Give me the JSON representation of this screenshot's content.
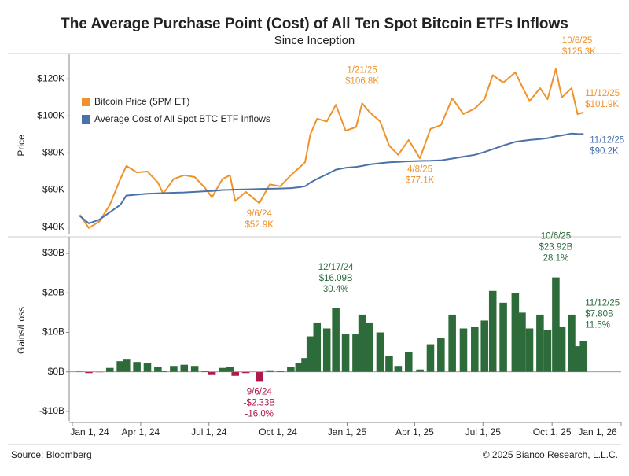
{
  "title": "The Average Purchase Point (Cost) of All Ten Spot Bitcoin ETFs Inflows",
  "subtitle": "Since Inception",
  "source": "Source: Bloomberg",
  "copyright": "© 2025 Bianco Research, L.L.C.",
  "chart_data": [
    {
      "type": "line",
      "y_label": "Price",
      "xlim": [
        "2024-01-01",
        "2026-01-01"
      ],
      "ylim": [
        36000,
        132000
      ],
      "yticks": [
        {
          "value": 40000,
          "label": "$40K"
        },
        {
          "value": 60000,
          "label": "$60K"
        },
        {
          "value": 80000,
          "label": "$80K"
        },
        {
          "value": 100000,
          "label": "$100K"
        },
        {
          "value": 120000,
          "label": "$120K"
        }
      ],
      "legend": "upper left",
      "x": [
        "2024-01-11",
        "2024-01-23",
        "2024-02-06",
        "2024-02-20",
        "2024-03-05",
        "2024-03-13",
        "2024-03-27",
        "2024-04-10",
        "2024-04-24",
        "2024-05-01",
        "2024-05-15",
        "2024-05-29",
        "2024-06-12",
        "2024-06-26",
        "2024-07-05",
        "2024-07-19",
        "2024-07-29",
        "2024-08-05",
        "2024-08-19",
        "2024-09-06",
        "2024-09-20",
        "2024-10-04",
        "2024-10-18",
        "2024-10-29",
        "2024-11-06",
        "2024-11-13",
        "2024-11-22",
        "2024-12-05",
        "2024-12-17",
        "2024-12-30",
        "2025-01-13",
        "2025-01-21",
        "2025-01-31",
        "2025-02-14",
        "2025-02-26",
        "2025-03-10",
        "2025-03-24",
        "2025-04-08",
        "2025-04-22",
        "2025-05-06",
        "2025-05-21",
        "2025-06-05",
        "2025-06-20",
        "2025-07-03",
        "2025-07-14",
        "2025-07-28",
        "2025-08-13",
        "2025-08-22",
        "2025-09-01",
        "2025-09-15",
        "2025-09-25",
        "2025-10-06",
        "2025-10-14",
        "2025-10-27",
        "2025-11-04",
        "2025-11-12"
      ],
      "series": [
        {
          "name": "Bitcoin Price (5PM ET)",
          "color": "#f0922b",
          "values": [
            46600,
            39500,
            43000,
            52000,
            66000,
            73000,
            69500,
            70000,
            64000,
            58000,
            66000,
            68000,
            67000,
            61000,
            56000,
            66000,
            68000,
            54000,
            59000,
            52900,
            63000,
            62000,
            68000,
            72000,
            75000,
            90000,
            98500,
            97000,
            106000,
            92000,
            94000,
            106800,
            102000,
            97000,
            84000,
            79000,
            87000,
            77100,
            93000,
            95000,
            109500,
            101000,
            104000,
            109000,
            122000,
            118000,
            123500,
            116000,
            108000,
            115000,
            109000,
            125300,
            110000,
            115000,
            101000,
            101900
          ],
          "annotations": [
            {
              "x": "2024-09-06",
              "date": "9/6/24",
              "value": 52900,
              "label": "$52.9K"
            },
            {
              "x": "2025-01-21",
              "date": "1/21/25",
              "value": 106800,
              "label": "$106.8K"
            },
            {
              "x": "2025-04-08",
              "date": "4/8/25",
              "value": 77100,
              "label": "$77.1K"
            },
            {
              "x": "2025-10-06",
              "date": "10/6/25",
              "value": 125300,
              "label": "$125.3K"
            },
            {
              "x": "2025-11-12",
              "date": "11/12/25",
              "value": 101900,
              "label": "$101.9K"
            }
          ]
        },
        {
          "name": "Average Cost of All Spot BTC ETF Inflows",
          "color": "#4a72a8",
          "values": [
            46000,
            42000,
            44000,
            48000,
            52000,
            57000,
            57500,
            58000,
            58200,
            58300,
            58500,
            58700,
            59000,
            59300,
            59500,
            60000,
            60100,
            60200,
            60300,
            60500,
            60700,
            60800,
            61000,
            61500,
            62000,
            64000,
            66000,
            68500,
            71000,
            72000,
            72500,
            73000,
            73800,
            74500,
            75000,
            75200,
            75500,
            75700,
            75800,
            76000,
            77000,
            78000,
            79000,
            80500,
            82000,
            84000,
            86000,
            86500,
            87000,
            87500,
            88000,
            89000,
            89500,
            90500,
            90300,
            90200
          ],
          "annotations": [
            {
              "x": "2025-11-12",
              "date": "11/12/25",
              "value": 90200,
              "label": "$90.2K"
            }
          ]
        }
      ]
    },
    {
      "type": "bar",
      "y_label": "Gains/Loss",
      "xlim": [
        "2024-01-01",
        "2026-01-01"
      ],
      "ylim": [
        -12.4,
        33.4
      ],
      "yticks": [
        {
          "value": -10,
          "label": "-$10B"
        },
        {
          "value": 0,
          "label": "$0B"
        },
        {
          "value": 10,
          "label": "$10B"
        },
        {
          "value": 20,
          "label": "$20B"
        },
        {
          "value": 30,
          "label": "$30B"
        }
      ],
      "xticks": [
        {
          "value": "2024-01-01",
          "label": "Jan 1, 24"
        },
        {
          "value": "2024-04-01",
          "label": "Apr 1, 24"
        },
        {
          "value": "2024-07-01",
          "label": "Jul 1, 24"
        },
        {
          "value": "2024-10-01",
          "label": "Oct 1, 24"
        },
        {
          "value": "2025-01-01",
          "label": "Jan 1, 25"
        },
        {
          "value": "2025-04-01",
          "label": "Apr 1, 25"
        },
        {
          "value": "2025-07-01",
          "label": "Jul 1, 25"
        },
        {
          "value": "2025-10-01",
          "label": "Oct 1, 25"
        },
        {
          "value": "2026-01-01",
          "label": "Jan 1, 26"
        }
      ],
      "positive_color": "#2e6b3a",
      "negative_color": "#b0174a",
      "x": [
        "2024-01-11",
        "2024-01-23",
        "2024-02-06",
        "2024-02-20",
        "2024-03-05",
        "2024-03-13",
        "2024-03-27",
        "2024-04-10",
        "2024-04-24",
        "2024-05-01",
        "2024-05-15",
        "2024-05-29",
        "2024-06-12",
        "2024-06-26",
        "2024-07-05",
        "2024-07-19",
        "2024-07-29",
        "2024-08-05",
        "2024-08-19",
        "2024-09-06",
        "2024-09-20",
        "2024-10-04",
        "2024-10-18",
        "2024-10-29",
        "2024-11-06",
        "2024-11-13",
        "2024-11-22",
        "2024-12-05",
        "2024-12-17",
        "2024-12-30",
        "2025-01-13",
        "2025-01-21",
        "2025-01-31",
        "2025-02-14",
        "2025-02-26",
        "2025-03-10",
        "2025-03-24",
        "2025-04-08",
        "2025-04-22",
        "2025-05-06",
        "2025-05-21",
        "2025-06-05",
        "2025-06-20",
        "2025-07-03",
        "2025-07-14",
        "2025-07-28",
        "2025-08-13",
        "2025-08-22",
        "2025-09-01",
        "2025-09-15",
        "2025-09-25",
        "2025-10-06",
        "2025-10-14",
        "2025-10-27",
        "2025-11-04",
        "2025-11-12"
      ],
      "values": [
        0.1,
        -0.3,
        -0.1,
        1,
        2.7,
        3.3,
        2.5,
        2.3,
        1.3,
        0.2,
        1.5,
        1.8,
        1.5,
        0.3,
        -0.6,
        1,
        1.3,
        -1,
        -0.3,
        -2.33,
        0.4,
        0.2,
        1.2,
        2.3,
        3.5,
        9,
        12.5,
        11,
        16.09,
        9.5,
        9.5,
        14.5,
        12.5,
        10,
        4,
        1.5,
        5,
        0.6,
        7,
        8.5,
        14.5,
        11,
        11.5,
        13,
        20.5,
        17.5,
        20,
        15,
        11,
        14.5,
        10.5,
        23.92,
        11.5,
        14.5,
        6.5,
        7.8
      ],
      "annotations": [
        {
          "x": "2024-09-06",
          "date": "9/6/24",
          "value": -2.33,
          "label": "-$2.33B",
          "pct": -16.0,
          "pct_label": "-16.0%"
        },
        {
          "x": "2024-12-17",
          "date": "12/17/24",
          "value": 16.09,
          "label": "$16.09B",
          "pct": 30.4,
          "pct_label": "30.4%"
        },
        {
          "x": "2025-10-06",
          "date": "10/6/25",
          "value": 23.92,
          "label": "$23.92B",
          "pct": 28.1,
          "pct_label": "28.1%"
        },
        {
          "x": "2025-11-12",
          "date": "11/12/25",
          "value": 7.8,
          "label": "$7.80B",
          "pct": 11.5,
          "pct_label": "11.5%"
        }
      ]
    }
  ]
}
